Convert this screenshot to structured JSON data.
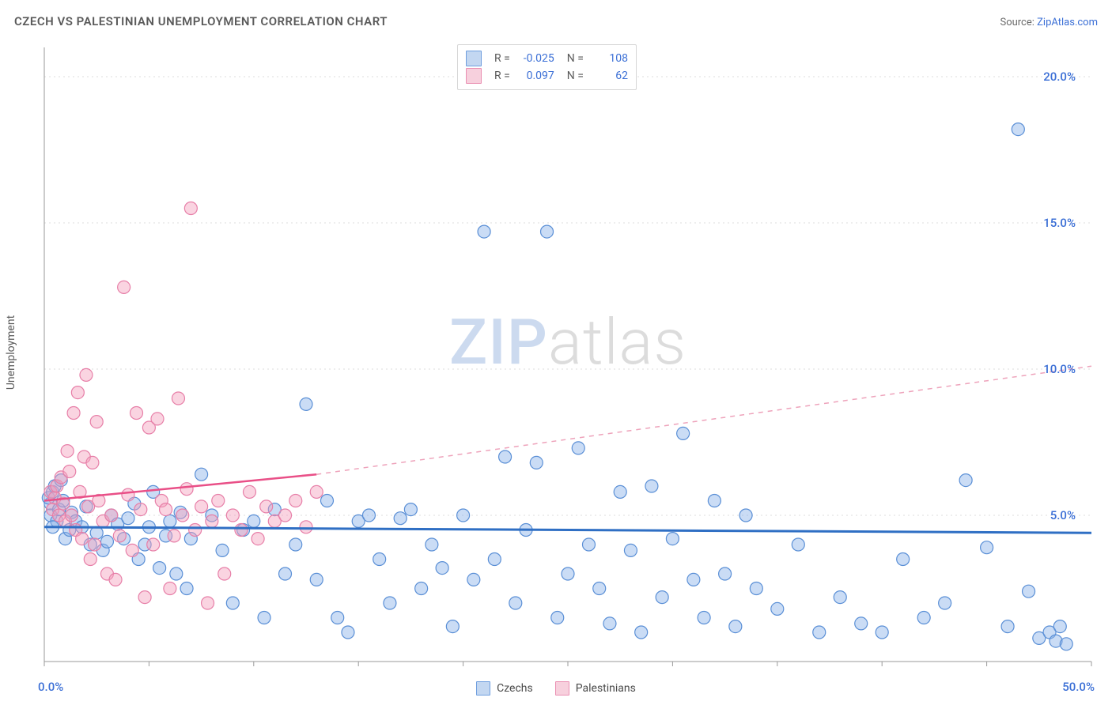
{
  "title": "CZECH VS PALESTINIAN UNEMPLOYMENT CORRELATION CHART",
  "source_prefix": "Source: ",
  "source_link": "ZipAtlas.com",
  "ylabel": "Unemployment",
  "watermark": {
    "zip": "ZIP",
    "atlas": "atlas"
  },
  "chart": {
    "type": "scatter",
    "background_color": "#ffffff",
    "grid_color": "#dddddd",
    "axis_color": "#9a9a9a",
    "xlim": [
      0,
      50
    ],
    "ylim": [
      0,
      21
    ],
    "xtick_step": 5,
    "yticks": [
      5,
      10,
      15,
      20
    ],
    "ytick_labels": [
      "5.0%",
      "10.0%",
      "15.0%",
      "20.0%"
    ],
    "xmin_label": "0.0%",
    "xmax_label": "50.0%",
    "marker_radius": 8,
    "series": [
      {
        "name": "Czechs",
        "fill": "rgba(137,178,232,0.45)",
        "stroke": "#5a8fd6",
        "swatch_fill": "#c3d7f1",
        "swatch_border": "#6f9ede",
        "R": "-0.025",
        "N": "108",
        "trend": {
          "solid_color": "#2f6fc4",
          "solid_width": 3,
          "y_left": 4.6,
          "y_right": 4.4
        },
        "points": [
          [
            0.3,
            5.4
          ],
          [
            0.2,
            5.6
          ],
          [
            0.4,
            5.8
          ],
          [
            0.5,
            6.0
          ],
          [
            0.3,
            5.0
          ],
          [
            0.6,
            4.8
          ],
          [
            0.4,
            4.6
          ],
          [
            0.7,
            5.2
          ],
          [
            0.8,
            6.2
          ],
          [
            0.9,
            5.5
          ],
          [
            1.0,
            4.2
          ],
          [
            1.2,
            4.5
          ],
          [
            1.3,
            5.1
          ],
          [
            1.5,
            4.8
          ],
          [
            1.8,
            4.6
          ],
          [
            2.0,
            5.3
          ],
          [
            2.2,
            4.0
          ],
          [
            2.5,
            4.4
          ],
          [
            2.8,
            3.8
          ],
          [
            3.0,
            4.1
          ],
          [
            3.2,
            5.0
          ],
          [
            3.5,
            4.7
          ],
          [
            3.8,
            4.2
          ],
          [
            4.0,
            4.9
          ],
          [
            4.3,
            5.4
          ],
          [
            4.5,
            3.5
          ],
          [
            4.8,
            4.0
          ],
          [
            5.0,
            4.6
          ],
          [
            5.2,
            5.8
          ],
          [
            5.5,
            3.2
          ],
          [
            5.8,
            4.3
          ],
          [
            6.0,
            4.8
          ],
          [
            6.3,
            3.0
          ],
          [
            6.5,
            5.1
          ],
          [
            6.8,
            2.5
          ],
          [
            7.0,
            4.2
          ],
          [
            7.5,
            6.4
          ],
          [
            8.0,
            5.0
          ],
          [
            8.5,
            3.8
          ],
          [
            9.0,
            2.0
          ],
          [
            9.5,
            4.5
          ],
          [
            10.0,
            4.8
          ],
          [
            10.5,
            1.5
          ],
          [
            11.0,
            5.2
          ],
          [
            11.5,
            3.0
          ],
          [
            12.0,
            4.0
          ],
          [
            12.5,
            8.8
          ],
          [
            13.0,
            2.8
          ],
          [
            13.5,
            5.5
          ],
          [
            14.0,
            1.5
          ],
          [
            14.5,
            1.0
          ],
          [
            15.0,
            4.8
          ],
          [
            15.5,
            5.0
          ],
          [
            16.0,
            3.5
          ],
          [
            16.5,
            2.0
          ],
          [
            17.0,
            4.9
          ],
          [
            17.5,
            5.2
          ],
          [
            18.0,
            2.5
          ],
          [
            18.5,
            4.0
          ],
          [
            19.0,
            3.2
          ],
          [
            19.5,
            1.2
          ],
          [
            20.0,
            5.0
          ],
          [
            20.5,
            2.8
          ],
          [
            21.0,
            14.7
          ],
          [
            21.5,
            3.5
          ],
          [
            22.0,
            7.0
          ],
          [
            22.5,
            2.0
          ],
          [
            23.0,
            4.5
          ],
          [
            23.5,
            6.8
          ],
          [
            24.0,
            14.7
          ],
          [
            24.5,
            1.5
          ],
          [
            25.0,
            3.0
          ],
          [
            25.5,
            7.3
          ],
          [
            26.0,
            4.0
          ],
          [
            26.5,
            2.5
          ],
          [
            27.0,
            1.3
          ],
          [
            27.5,
            5.8
          ],
          [
            28.0,
            3.8
          ],
          [
            28.5,
            1.0
          ],
          [
            29.0,
            6.0
          ],
          [
            29.5,
            2.2
          ],
          [
            30.0,
            4.2
          ],
          [
            30.5,
            7.8
          ],
          [
            31.0,
            2.8
          ],
          [
            31.5,
            1.5
          ],
          [
            32.0,
            5.5
          ],
          [
            32.5,
            3.0
          ],
          [
            33.0,
            1.2
          ],
          [
            33.5,
            5.0
          ],
          [
            34.0,
            2.5
          ],
          [
            35.0,
            1.8
          ],
          [
            36.0,
            4.0
          ],
          [
            37.0,
            1.0
          ],
          [
            38.0,
            2.2
          ],
          [
            39.0,
            1.3
          ],
          [
            40.0,
            1.0
          ],
          [
            41.0,
            3.5
          ],
          [
            42.0,
            1.5
          ],
          [
            43.0,
            2.0
          ],
          [
            44.0,
            6.2
          ],
          [
            45.0,
            3.9
          ],
          [
            46.0,
            1.2
          ],
          [
            46.5,
            18.2
          ],
          [
            47.0,
            2.4
          ],
          [
            47.5,
            0.8
          ],
          [
            48.0,
            1.0
          ],
          [
            48.3,
            0.7
          ],
          [
            48.5,
            1.2
          ],
          [
            48.8,
            0.6
          ]
        ]
      },
      {
        "name": "Palestinians",
        "fill": "rgba(244,160,188,0.45)",
        "stroke": "#e77fa8",
        "swatch_fill": "#f7d0dd",
        "swatch_border": "#ea8fb2",
        "R": "0.097",
        "N": "62",
        "trend": {
          "solid_color": "#e94f87",
          "solid_width": 2.5,
          "dash_color": "#eea3bb",
          "y_left": 5.5,
          "y_solid_end_x": 13,
          "y_solid_end_y": 6.4,
          "y_right": 10.1
        },
        "points": [
          [
            0.3,
            5.8
          ],
          [
            0.4,
            5.2
          ],
          [
            0.5,
            5.6
          ],
          [
            0.6,
            6.0
          ],
          [
            0.7,
            5.0
          ],
          [
            0.8,
            6.3
          ],
          [
            0.9,
            5.4
          ],
          [
            1.0,
            4.8
          ],
          [
            1.1,
            7.2
          ],
          [
            1.2,
            6.5
          ],
          [
            1.3,
            5.0
          ],
          [
            1.4,
            8.5
          ],
          [
            1.5,
            4.5
          ],
          [
            1.6,
            9.2
          ],
          [
            1.7,
            5.8
          ],
          [
            1.8,
            4.2
          ],
          [
            1.9,
            7.0
          ],
          [
            2.0,
            9.8
          ],
          [
            2.1,
            5.3
          ],
          [
            2.2,
            3.5
          ],
          [
            2.3,
            6.8
          ],
          [
            2.4,
            4.0
          ],
          [
            2.5,
            8.2
          ],
          [
            2.6,
            5.5
          ],
          [
            2.8,
            4.8
          ],
          [
            3.0,
            3.0
          ],
          [
            3.2,
            5.0
          ],
          [
            3.4,
            2.8
          ],
          [
            3.6,
            4.3
          ],
          [
            3.8,
            12.8
          ],
          [
            4.0,
            5.7
          ],
          [
            4.2,
            3.8
          ],
          [
            4.4,
            8.5
          ],
          [
            4.6,
            5.2
          ],
          [
            4.8,
            2.2
          ],
          [
            5.0,
            8.0
          ],
          [
            5.2,
            4.0
          ],
          [
            5.4,
            8.3
          ],
          [
            5.6,
            5.5
          ],
          [
            5.8,
            5.2
          ],
          [
            6.0,
            2.5
          ],
          [
            6.2,
            4.3
          ],
          [
            6.4,
            9.0
          ],
          [
            6.6,
            5.0
          ],
          [
            6.8,
            5.9
          ],
          [
            7.0,
            15.5
          ],
          [
            7.2,
            4.5
          ],
          [
            7.5,
            5.3
          ],
          [
            7.8,
            2.0
          ],
          [
            8.0,
            4.8
          ],
          [
            8.3,
            5.5
          ],
          [
            8.6,
            3.0
          ],
          [
            9.0,
            5.0
          ],
          [
            9.4,
            4.5
          ],
          [
            9.8,
            5.8
          ],
          [
            10.2,
            4.2
          ],
          [
            10.6,
            5.3
          ],
          [
            11.0,
            4.8
          ],
          [
            11.5,
            5.0
          ],
          [
            12.0,
            5.5
          ],
          [
            12.5,
            4.6
          ],
          [
            13.0,
            5.8
          ]
        ]
      }
    ]
  },
  "legend_labels": [
    "Czechs",
    "Palestinians"
  ],
  "stats_legend": {
    "r_label": "R =",
    "n_label": "N ="
  }
}
